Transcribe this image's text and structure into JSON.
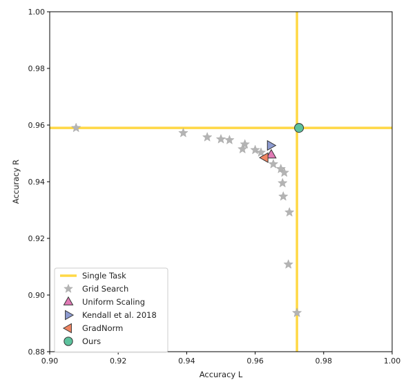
{
  "chart_data": {
    "type": "scatter",
    "title": "",
    "xlabel": "Accuracy L",
    "ylabel": "Accuracy R",
    "xlim": [
      0.9,
      1.0
    ],
    "ylim": [
      0.88,
      1.0
    ],
    "xticks": [
      "0.90",
      "0.92",
      "0.94",
      "0.96",
      "0.98",
      "1.00"
    ],
    "yticks": [
      "0.88",
      "0.90",
      "0.92",
      "0.94",
      "0.96",
      "0.98",
      "1.00"
    ],
    "grid": false,
    "legend_position": "lower-left",
    "single_task": {
      "name": "Single Task",
      "x": 0.9722,
      "y": 0.959,
      "color": "#ffd845"
    },
    "series": [
      {
        "name": "Grid Search",
        "marker": "star",
        "color": "#b4b4b4",
        "points": [
          [
            0.9077,
            0.959
          ],
          [
            0.939,
            0.9572
          ],
          [
            0.946,
            0.9557
          ],
          [
            0.95,
            0.955
          ],
          [
            0.9525,
            0.9547
          ],
          [
            0.957,
            0.9532
          ],
          [
            0.9563,
            0.9515
          ],
          [
            0.96,
            0.9512
          ],
          [
            0.9617,
            0.9503
          ],
          [
            0.9653,
            0.9462
          ],
          [
            0.9675,
            0.9445
          ],
          [
            0.9685,
            0.9432
          ],
          [
            0.968,
            0.9395
          ],
          [
            0.9682,
            0.9348
          ],
          [
            0.97,
            0.9292
          ],
          [
            0.9697,
            0.9108
          ],
          [
            0.9722,
            0.8937
          ]
        ]
      },
      {
        "name": "Uniform Scaling",
        "marker": "triangle-up",
        "color": "#e07ab5",
        "points": [
          [
            0.9647,
            0.9495
          ]
        ]
      },
      {
        "name": "Kendall et al. 2018",
        "marker": "triangle-right",
        "color": "#8d9bd0",
        "points": [
          [
            0.9645,
            0.9528
          ]
        ]
      },
      {
        "name": "GradNorm",
        "marker": "triangle-left",
        "color": "#f08562",
        "points": [
          [
            0.9628,
            0.9485
          ]
        ]
      },
      {
        "name": "Ours",
        "marker": "circle",
        "color": "#5dc29d",
        "points": [
          [
            0.9728,
            0.959
          ]
        ]
      }
    ]
  }
}
